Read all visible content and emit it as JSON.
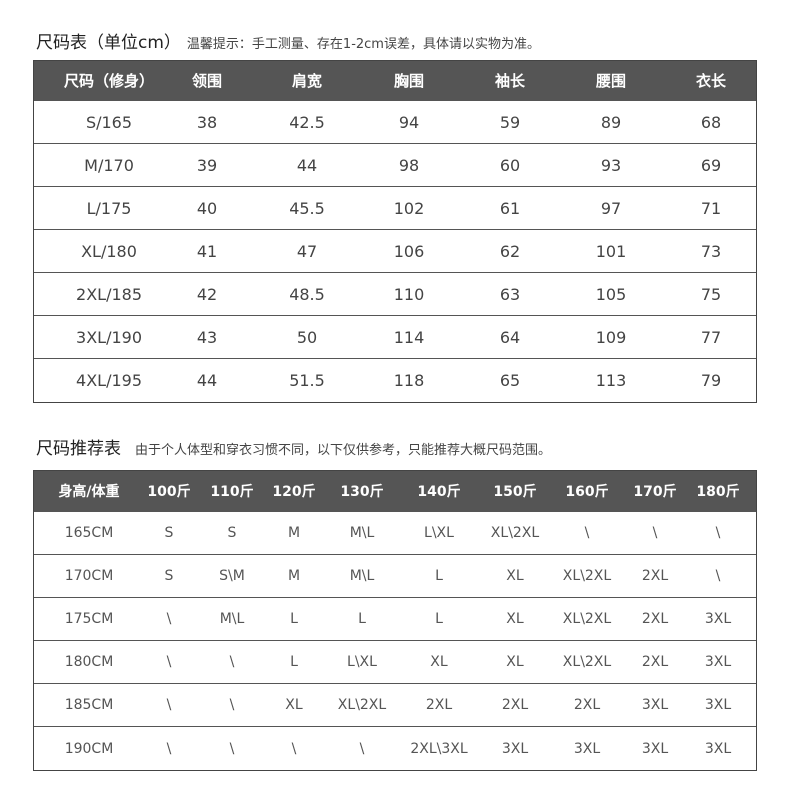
{
  "size_table": {
    "title": "尺码表（单位cm）",
    "note": "温馨提示：手工测量、存在1-2cm误差，具体请以实物为准。",
    "header_bg": "#555555",
    "columns": [
      "尺码（修身）",
      "领围",
      "肩宽",
      "胸围",
      "袖长",
      "腰围",
      "衣长"
    ],
    "rows": [
      [
        "S/165",
        "38",
        "42.5",
        "94",
        "59",
        "89",
        "68"
      ],
      [
        "M/170",
        "39",
        "44",
        "98",
        "60",
        "93",
        "69"
      ],
      [
        "L/175",
        "40",
        "45.5",
        "102",
        "61",
        "97",
        "71"
      ],
      [
        "XL/180",
        "41",
        "47",
        "106",
        "62",
        "101",
        "73"
      ],
      [
        "2XL/185",
        "42",
        "48.5",
        "110",
        "63",
        "105",
        "75"
      ],
      [
        "3XL/190",
        "43",
        "50",
        "114",
        "64",
        "109",
        "77"
      ],
      [
        "4XL/195",
        "44",
        "51.5",
        "118",
        "65",
        "113",
        "79"
      ]
    ]
  },
  "recommend_table": {
    "title": "尺码推荐表",
    "note": "由于个人体型和穿衣习惯不同，以下仅供参考，只能推荐大概尺码范围。",
    "columns": [
      "身高/体重",
      "100斤",
      "110斤",
      "120斤",
      "130斤",
      "140斤",
      "150斤",
      "160斤",
      "170斤",
      "180斤"
    ],
    "rows": [
      [
        "165CM",
        "S",
        "S",
        "M",
        "M\\L",
        "L\\XL",
        "XL\\2XL",
        "\\",
        "\\",
        "\\"
      ],
      [
        "170CM",
        "S",
        "S\\M",
        "M",
        "M\\L",
        "L",
        "XL",
        "XL\\2XL",
        "2XL",
        "\\"
      ],
      [
        "175CM",
        "\\",
        "M\\L",
        "L",
        "L",
        "L",
        "XL",
        "XL\\2XL",
        "2XL",
        "3XL"
      ],
      [
        "180CM",
        "\\",
        "\\",
        "L",
        "L\\XL",
        "XL",
        "XL",
        "XL\\2XL",
        "2XL",
        "3XL"
      ],
      [
        "185CM",
        "\\",
        "\\",
        "XL",
        "XL\\2XL",
        "2XL",
        "2XL",
        "2XL",
        "3XL",
        "3XL"
      ],
      [
        "190CM",
        "\\",
        "\\",
        "\\",
        "\\",
        "2XL\\3XL",
        "3XL",
        "3XL",
        "3XL",
        "3XL"
      ]
    ]
  }
}
